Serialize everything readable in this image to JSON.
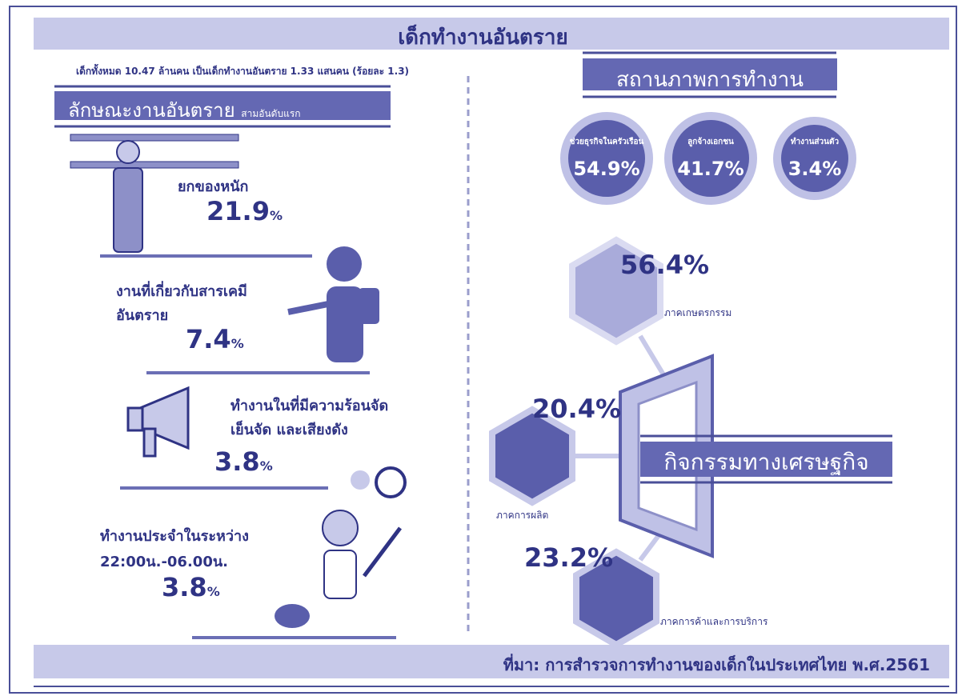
{
  "title": "เด็กทำงานอันตราย",
  "summary": "เด็กทั้งหมด 10.47 ล้านคน เป็นเด็กทำงานอันตราย 1.33 แสนคน (ร้อยละ 1.3)",
  "hazard_section": {
    "heading": "ลักษณะงานอันตราย",
    "subheading": "สามอันดับแรก",
    "items": [
      {
        "label": [
          "ยกของหนัก"
        ],
        "value": "21.9",
        "unit": "%"
      },
      {
        "label": [
          "งานที่เกี่ยวกับสารเคมี",
          "อันตราย"
        ],
        "value": "7.4",
        "unit": "%"
      },
      {
        "label": [
          "ทำงานในที่มีความร้อนจัด",
          "เย็นจัด และเสียงดัง"
        ],
        "value": "3.8",
        "unit": "%"
      },
      {
        "label": [
          "ทำงานประจำในระหว่าง",
          "22:00น.-06.00น."
        ],
        "value": "3.8",
        "unit": "%"
      }
    ]
  },
  "status_section": {
    "heading": "สถานภาพการทำงาน",
    "items": [
      {
        "label": "ช่วยธุรกิจในครัวเรือน",
        "value": "54.9%"
      },
      {
        "label": "ลูกจ้างเอกชน",
        "value": "41.7%"
      },
      {
        "label": "ทำงานส่วนตัว",
        "value": "3.4%"
      }
    ]
  },
  "economic_section": {
    "heading": "กิจกรรมทางเศรษฐกิจ",
    "items": [
      {
        "label": "ภาคเกษตรกรรม",
        "value": "56.4%"
      },
      {
        "label": "ภาคการผลิต",
        "value": "20.4%"
      },
      {
        "label": "ภาคการค้าและการบริการ",
        "value": "23.2%"
      }
    ]
  },
  "source": "ที่มา: การสำรวจการทำงานของเด็กในประเทศไทย พ.ศ.2561"
}
